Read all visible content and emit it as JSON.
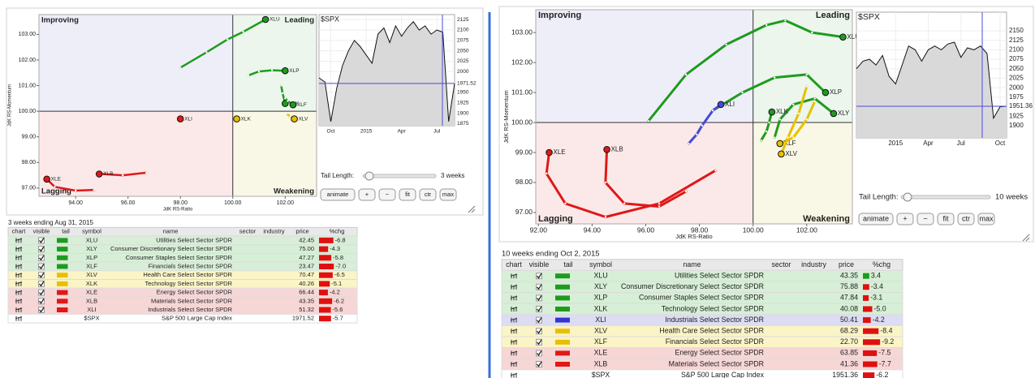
{
  "panels": [
    {
      "rrg": {
        "type": "scatter",
        "quadrant_labels": {
          "improving": "Improving",
          "leading": "Leading",
          "lagging": "Lagging",
          "weakening": "Weakening"
        },
        "xlabel": "JdK RS-Ratio",
        "ylabel": "JdK RS-Momentum",
        "xlim": [
          92.6,
          103.2
        ],
        "ylim": [
          96.68,
          103.77
        ],
        "center": [
          100,
          100
        ],
        "xticks": [
          {
            "value": 94,
            "label": "94.00"
          },
          {
            "value": 96,
            "label": "96.00"
          },
          {
            "value": 98,
            "label": "98.00"
          },
          {
            "value": 100,
            "label": "100.00"
          },
          {
            "value": 102,
            "label": "102.00"
          }
        ],
        "yticks": [
          {
            "value": 97,
            "label": "97.00"
          },
          {
            "value": 98,
            "label": "98.00"
          },
          {
            "value": 99,
            "label": "99.00"
          },
          {
            "value": 100,
            "label": "100.00"
          },
          {
            "value": 101,
            "label": "101.00"
          },
          {
            "value": 102,
            "label": "102.00"
          },
          {
            "value": 103,
            "label": "103.00"
          }
        ],
        "series": [
          {
            "name": "XLU",
            "color": "#1e9b1e",
            "x": [
              98.0,
              99.0,
              99.8,
              100.4,
              101.25
            ],
            "y": [
              101.7,
              102.3,
              102.8,
              103.1,
              103.58
            ]
          },
          {
            "name": "XLP",
            "color": "#1e9b1e",
            "x": [
              100.6,
              101.0,
              101.5,
              102.0
            ],
            "y": [
              101.4,
              101.55,
              101.6,
              101.58
            ]
          },
          {
            "name": "XLY",
            "color": "#1e9b1e",
            "x": [
              101.85,
              101.9,
              102.0
            ],
            "y": [
              101.0,
              100.7,
              100.3
            ]
          },
          {
            "name": "XLF",
            "color": "#1e9b1e",
            "x": [
              102.0,
              102.1,
              102.3
            ],
            "y": [
              100.5,
              100.4,
              100.25
            ]
          },
          {
            "name": "XLV",
            "color": "#e8c000",
            "x": [
              102.05,
              102.2,
              102.35
            ],
            "y": [
              99.9,
              99.8,
              99.7
            ]
          },
          {
            "name": "XLK",
            "color": "#e8c000",
            "x": [
              100.1,
              100.15
            ],
            "y": [
              99.75,
              99.7
            ]
          },
          {
            "name": "XLI",
            "color": "#e01818",
            "x": [
              98.0,
              98.0
            ],
            "y": [
              99.85,
              99.7
            ]
          },
          {
            "name": "XLE",
            "color": "#e01818",
            "x": [
              94.7,
              94.0,
              93.2,
              92.9
            ],
            "y": [
              96.93,
              96.9,
              97.05,
              97.35
            ]
          },
          {
            "name": "XLB",
            "color": "#e01818",
            "x": [
              96.7,
              95.8,
              95.0,
              94.9
            ],
            "y": [
              97.6,
              97.5,
              97.55,
              97.55
            ]
          }
        ]
      },
      "price": {
        "type": "line",
        "title": "$SPX",
        "categories": [
          null,
          null,
          "Oct",
          null,
          null,
          null,
          null,
          null,
          "2015",
          null,
          null,
          null,
          null,
          null,
          "Apr",
          null,
          null,
          null,
          null,
          null,
          "Jul",
          null,
          null,
          null
        ],
        "values": [
          1985,
          1975,
          1880,
          1960,
          2015,
          2050,
          2075,
          2060,
          2040,
          2020,
          2090,
          2105,
          2070,
          2110,
          2085,
          2105,
          2120,
          2100,
          2110,
          2090,
          2100,
          2095,
          1880,
          1971.52
        ],
        "ylim": [
          1870,
          2137
        ],
        "yticks": [
          1875,
          1900,
          1925,
          1950,
          1975,
          2000,
          2025,
          2050,
          2075,
          2100,
          2125
        ]
      },
      "controls": {
        "tail_label": "Tail Length:",
        "tail_value": "3 weeks",
        "buttons": [
          "animate",
          "+",
          "−",
          "fit",
          "ctr",
          "max"
        ]
      },
      "table": {
        "caption": "3 weeks ending Aug 31, 2015",
        "columns": [
          "chart",
          "visible",
          "tail",
          "symbol",
          "name",
          "sector",
          "industry",
          "price",
          "%chg"
        ],
        "rows": [
          {
            "symbol": "XLU",
            "name": "Utilities Select Sector SPDR",
            "price": "42.45",
            "chg": "-6.8",
            "group": "leading"
          },
          {
            "symbol": "XLY",
            "name": "Consumer Discretionary Select Sector SPDR",
            "price": "75.00",
            "chg": "-4.3",
            "group": "leading"
          },
          {
            "symbol": "XLP",
            "name": "Consumer Staples Select Sector SPDR",
            "price": "47.27",
            "chg": "-5.8",
            "group": "leading"
          },
          {
            "symbol": "XLF",
            "name": "Financials Select Sector SPDR",
            "price": "23.47",
            "chg": "-7.0",
            "group": "leading"
          },
          {
            "symbol": "XLV",
            "name": "Health Care Select Sector SPDR",
            "price": "70.47",
            "chg": "-6.5",
            "group": "weakening"
          },
          {
            "symbol": "XLK",
            "name": "Technology Select Sector SPDR",
            "price": "40.26",
            "chg": "-5.1",
            "group": "weakening"
          },
          {
            "symbol": "XLE",
            "name": "Energy Select Sector SPDR",
            "price": "66.44",
            "chg": "-4.2",
            "group": "lagging"
          },
          {
            "symbol": "XLB",
            "name": "Materials Select Sector SPDR",
            "price": "43.35",
            "chg": "-6.2",
            "group": "lagging"
          },
          {
            "symbol": "XLI",
            "name": "Industrials Select Sector SPDR",
            "price": "51.32",
            "chg": "-5.6",
            "group": "lagging"
          },
          {
            "symbol": "$SPX",
            "name": "S&P 500 Large Cap Index",
            "price": "1971.52",
            "chg": "-5.7",
            "group": null
          }
        ]
      }
    },
    {
      "rrg": {
        "type": "scatter",
        "quadrant_labels": {
          "improving": "Improving",
          "leading": "Leading",
          "lagging": "Lagging",
          "weakening": "Weakening"
        },
        "xlabel": "JdK RS-Ratio",
        "ylabel": "JdK RS-Momentum",
        "xlim": [
          91.9,
          103.7
        ],
        "ylim": [
          96.62,
          103.76
        ],
        "center": [
          100,
          100
        ],
        "xticks": [
          {
            "value": 92,
            "label": "92.00"
          },
          {
            "value": 94,
            "label": "94.00"
          },
          {
            "value": 96,
            "label": "96.00"
          },
          {
            "value": 98,
            "label": "98.00"
          },
          {
            "value": 100,
            "label": "100.00"
          },
          {
            "value": 102,
            "label": "102.00"
          }
        ],
        "yticks": [
          {
            "value": 97,
            "label": "97.00"
          },
          {
            "value": 98,
            "label": "98.00"
          },
          {
            "value": 99,
            "label": "99.00"
          },
          {
            "value": 100,
            "label": "100.00"
          },
          {
            "value": 101,
            "label": "101.00"
          },
          {
            "value": 102,
            "label": "102.00"
          },
          {
            "value": 103,
            "label": "103.00"
          }
        ],
        "series": [
          {
            "name": "XLU",
            "color": "#1e9b1e",
            "x": [
              96.1,
              97.5,
              99.0,
              100.5,
              101.2,
              102.2,
              103.35
            ],
            "y": [
              100.05,
              101.6,
              102.6,
              103.25,
              103.4,
              103.0,
              102.85
            ]
          },
          {
            "name": "XLP",
            "color": "#1e9b1e",
            "x": [
              98.5,
              99.6,
              100.8,
              102.0,
              102.7
            ],
            "y": [
              100.4,
              101.0,
              101.5,
              101.6,
              101.0
            ]
          },
          {
            "name": "XLY",
            "color": "#1e9b1e",
            "x": [
              100.8,
              101.0,
              101.5,
              102.3,
              103.0
            ],
            "y": [
              99.5,
              100.1,
              100.6,
              100.8,
              100.3
            ]
          },
          {
            "name": "XLK",
            "color": "#1e9b1e",
            "x": [
              100.3,
              100.5,
              100.6,
              100.7
            ],
            "y": [
              99.4,
              99.7,
              100.0,
              100.35
            ]
          },
          {
            "name": "XLF",
            "color": "#e8c000",
            "x": [
              102.3,
              102.0,
              101.5,
              101.0
            ],
            "y": [
              100.7,
              100.1,
              99.5,
              99.3
            ]
          },
          {
            "name": "XLV",
            "color": "#e8c000",
            "x": [
              102.0,
              101.7,
              101.3,
              101.05
            ],
            "y": [
              101.2,
              100.3,
              99.5,
              98.95
            ]
          },
          {
            "name": "XLI",
            "color": "#4848d8",
            "x": [
              97.6,
              97.9,
              98.1,
              98.5,
              98.8
            ],
            "y": [
              99.3,
              99.6,
              99.9,
              100.4,
              100.6
            ]
          },
          {
            "name": "XLE",
            "color": "#e01818",
            "x": [
              98.6,
              96.5,
              94.5,
              93.0,
              92.3,
              92.4
            ],
            "y": [
              98.4,
              97.3,
              96.85,
              97.3,
              98.3,
              99.0
            ]
          },
          {
            "name": "XLB",
            "color": "#e01818",
            "x": [
              97.5,
              96.5,
              95.2,
              94.5,
              94.55
            ],
            "y": [
              97.7,
              97.2,
              97.3,
              98.0,
              99.1
            ]
          }
        ]
      },
      "price": {
        "type": "line",
        "title": "$SPX",
        "categories": [
          null,
          null,
          null,
          null,
          null,
          null,
          "2015",
          null,
          null,
          null,
          null,
          "Apr",
          null,
          null,
          null,
          null,
          "Jul",
          null,
          null,
          null,
          null,
          null,
          "Oct",
          null
        ],
        "values": [
          2050,
          2070,
          2075,
          2060,
          2085,
          2030,
          2010,
          2060,
          2110,
          2100,
          2070,
          2100,
          2110,
          2100,
          2115,
          2120,
          2080,
          2105,
          2100,
          2110,
          2090,
          1920,
          1950,
          1951.36
        ],
        "ylim": [
          1868,
          2199
        ],
        "yticks": [
          1900,
          1925,
          1950,
          1975,
          2000,
          2025,
          2050,
          2075,
          2100,
          2125,
          2150
        ]
      },
      "controls": {
        "tail_label": "Tail Length:",
        "tail_value": "10 weeks",
        "buttons": [
          "animate",
          "+",
          "−",
          "fit",
          "ctr",
          "max"
        ]
      },
      "table": {
        "caption": "10 weeks ending Oct 2, 2015",
        "columns": [
          "chart",
          "visible",
          "tail",
          "symbol",
          "name",
          "sector",
          "industry",
          "price",
          "%chg"
        ],
        "rows": [
          {
            "symbol": "XLU",
            "name": "Utilities Select Sector SPDR",
            "price": "43.35",
            "chg": "3.4",
            "group": "leading"
          },
          {
            "symbol": "XLY",
            "name": "Consumer Discretionary Select Sector SPDR",
            "price": "75.88",
            "chg": "-3.4",
            "group": "leading"
          },
          {
            "symbol": "XLP",
            "name": "Consumer Staples Select Sector SPDR",
            "price": "47.84",
            "chg": "-3.1",
            "group": "leading"
          },
          {
            "symbol": "XLK",
            "name": "Technology Select Sector SPDR",
            "price": "40.08",
            "chg": "-5.0",
            "group": "leading"
          },
          {
            "symbol": "XLI",
            "name": "Industrials Select Sector SPDR",
            "price": "50.41",
            "chg": "-4.2",
            "group": "improving"
          },
          {
            "symbol": "XLV",
            "name": "Health Care Select Sector SPDR",
            "price": "68.29",
            "chg": "-8.4",
            "group": "weakening"
          },
          {
            "symbol": "XLF",
            "name": "Financials Select Sector SPDR",
            "price": "22.70",
            "chg": "-9.2",
            "group": "weakening"
          },
          {
            "symbol": "XLE",
            "name": "Energy Select Sector SPDR",
            "price": "63.85",
            "chg": "-7.5",
            "group": "lagging"
          },
          {
            "symbol": "XLB",
            "name": "Materials Select Sector SPDR",
            "price": "41.36",
            "chg": "-7.7",
            "group": "lagging"
          },
          {
            "symbol": "$SPX",
            "name": "S&P 500 Large Cap Index",
            "price": "1951.36",
            "chg": "-6.2",
            "group": null
          }
        ]
      }
    }
  ]
}
